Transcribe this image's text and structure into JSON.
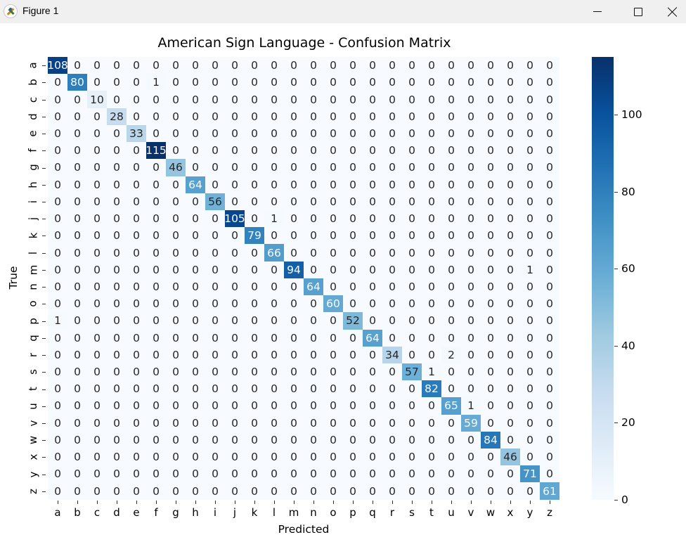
{
  "window": {
    "title": "Figure 1",
    "controls": {
      "minimize": "minimize",
      "maximize": "maximize",
      "close": "close"
    }
  },
  "chart_data": {
    "type": "heatmap",
    "title": "American Sign Language - Confusion Matrix",
    "xlabel": "Predicted",
    "ylabel": "True",
    "x_categories": [
      "a",
      "b",
      "c",
      "d",
      "e",
      "f",
      "g",
      "h",
      "i",
      "j",
      "k",
      "l",
      "m",
      "n",
      "o",
      "p",
      "q",
      "r",
      "s",
      "t",
      "u",
      "v",
      "w",
      "x",
      "y",
      "z"
    ],
    "y_categories": [
      "a",
      "b",
      "c",
      "d",
      "e",
      "f",
      "g",
      "h",
      "i",
      "j",
      "k",
      "l",
      "m",
      "n",
      "o",
      "p",
      "q",
      "r",
      "s",
      "t",
      "u",
      "v",
      "w",
      "x",
      "y",
      "z"
    ],
    "colormap": "Blues",
    "annotated": true,
    "colorbar": {
      "min": 0,
      "max": 115,
      "ticks": [
        0,
        20,
        40,
        60,
        80,
        100
      ]
    },
    "matrix": [
      [
        108,
        0,
        0,
        0,
        0,
        0,
        0,
        0,
        0,
        0,
        0,
        0,
        0,
        0,
        0,
        0,
        0,
        0,
        0,
        0,
        0,
        0,
        0,
        0,
        0,
        0
      ],
      [
        0,
        80,
        0,
        0,
        0,
        1,
        0,
        0,
        0,
        0,
        0,
        0,
        0,
        0,
        0,
        0,
        0,
        0,
        0,
        0,
        0,
        0,
        0,
        0,
        0,
        0
      ],
      [
        0,
        0,
        10,
        0,
        0,
        0,
        0,
        0,
        0,
        0,
        0,
        0,
        0,
        0,
        0,
        0,
        0,
        0,
        0,
        0,
        0,
        0,
        0,
        0,
        0,
        0
      ],
      [
        0,
        0,
        0,
        28,
        0,
        0,
        0,
        0,
        0,
        0,
        0,
        0,
        0,
        0,
        0,
        0,
        0,
        0,
        0,
        0,
        0,
        0,
        0,
        0,
        0,
        0
      ],
      [
        0,
        0,
        0,
        0,
        33,
        0,
        0,
        0,
        0,
        0,
        0,
        0,
        0,
        0,
        0,
        0,
        0,
        0,
        0,
        0,
        0,
        0,
        0,
        0,
        0,
        0
      ],
      [
        0,
        0,
        0,
        0,
        0,
        115,
        0,
        0,
        0,
        0,
        0,
        0,
        0,
        0,
        0,
        0,
        0,
        0,
        0,
        0,
        0,
        0,
        0,
        0,
        0,
        0
      ],
      [
        0,
        0,
        0,
        0,
        0,
        0,
        46,
        0,
        0,
        0,
        0,
        0,
        0,
        0,
        0,
        0,
        0,
        0,
        0,
        0,
        0,
        0,
        0,
        0,
        0,
        0
      ],
      [
        0,
        0,
        0,
        0,
        0,
        0,
        0,
        64,
        0,
        0,
        0,
        0,
        0,
        0,
        0,
        0,
        0,
        0,
        0,
        0,
        0,
        0,
        0,
        0,
        0,
        0
      ],
      [
        0,
        0,
        0,
        0,
        0,
        0,
        0,
        0,
        56,
        0,
        0,
        0,
        0,
        0,
        0,
        0,
        0,
        0,
        0,
        0,
        0,
        0,
        0,
        0,
        0,
        0
      ],
      [
        0,
        0,
        0,
        0,
        0,
        0,
        0,
        0,
        0,
        105,
        0,
        1,
        0,
        0,
        0,
        0,
        0,
        0,
        0,
        0,
        0,
        0,
        0,
        0,
        0,
        0
      ],
      [
        0,
        0,
        0,
        0,
        0,
        0,
        0,
        0,
        0,
        0,
        79,
        0,
        0,
        0,
        0,
        0,
        0,
        0,
        0,
        0,
        0,
        0,
        0,
        0,
        0,
        0
      ],
      [
        0,
        0,
        0,
        0,
        0,
        0,
        0,
        0,
        0,
        0,
        0,
        66,
        0,
        0,
        0,
        0,
        0,
        0,
        0,
        0,
        0,
        0,
        0,
        0,
        0,
        0
      ],
      [
        0,
        0,
        0,
        0,
        0,
        0,
        0,
        0,
        0,
        0,
        0,
        0,
        94,
        0,
        0,
        0,
        0,
        0,
        0,
        0,
        0,
        0,
        0,
        0,
        1,
        0
      ],
      [
        0,
        0,
        0,
        0,
        0,
        0,
        0,
        0,
        0,
        0,
        0,
        0,
        0,
        64,
        0,
        0,
        0,
        0,
        0,
        0,
        0,
        0,
        0,
        0,
        0,
        0
      ],
      [
        0,
        0,
        0,
        0,
        0,
        0,
        0,
        0,
        0,
        0,
        0,
        0,
        0,
        0,
        60,
        0,
        0,
        0,
        0,
        0,
        0,
        0,
        0,
        0,
        0,
        0
      ],
      [
        1,
        0,
        0,
        0,
        0,
        0,
        0,
        0,
        0,
        0,
        0,
        0,
        0,
        0,
        0,
        52,
        0,
        0,
        0,
        0,
        0,
        0,
        0,
        0,
        0,
        0
      ],
      [
        0,
        0,
        0,
        0,
        0,
        0,
        0,
        0,
        0,
        0,
        0,
        0,
        0,
        0,
        0,
        0,
        64,
        0,
        0,
        0,
        0,
        0,
        0,
        0,
        0,
        0
      ],
      [
        0,
        0,
        0,
        0,
        0,
        0,
        0,
        0,
        0,
        0,
        0,
        0,
        0,
        0,
        0,
        0,
        0,
        34,
        0,
        0,
        2,
        0,
        0,
        0,
        0,
        0
      ],
      [
        0,
        0,
        0,
        0,
        0,
        0,
        0,
        0,
        0,
        0,
        0,
        0,
        0,
        0,
        0,
        0,
        0,
        0,
        57,
        1,
        0,
        0,
        0,
        0,
        0,
        0
      ],
      [
        0,
        0,
        0,
        0,
        0,
        0,
        0,
        0,
        0,
        0,
        0,
        0,
        0,
        0,
        0,
        0,
        0,
        0,
        0,
        82,
        0,
        0,
        0,
        0,
        0,
        0
      ],
      [
        0,
        0,
        0,
        0,
        0,
        0,
        0,
        0,
        0,
        0,
        0,
        0,
        0,
        0,
        0,
        0,
        0,
        0,
        0,
        0,
        65,
        1,
        0,
        0,
        0,
        0
      ],
      [
        0,
        0,
        0,
        0,
        0,
        0,
        0,
        0,
        0,
        0,
        0,
        0,
        0,
        0,
        0,
        0,
        0,
        0,
        0,
        0,
        0,
        59,
        0,
        0,
        0,
        0
      ],
      [
        0,
        0,
        0,
        0,
        0,
        0,
        0,
        0,
        0,
        0,
        0,
        0,
        0,
        0,
        0,
        0,
        0,
        0,
        0,
        0,
        0,
        0,
        84,
        0,
        0,
        0
      ],
      [
        0,
        0,
        0,
        0,
        0,
        0,
        0,
        0,
        0,
        0,
        0,
        0,
        0,
        0,
        0,
        0,
        0,
        0,
        0,
        0,
        0,
        0,
        0,
        46,
        0,
        0
      ],
      [
        0,
        0,
        0,
        0,
        0,
        0,
        0,
        0,
        0,
        0,
        0,
        0,
        0,
        0,
        0,
        0,
        0,
        0,
        0,
        0,
        0,
        0,
        0,
        0,
        71,
        0
      ],
      [
        0,
        0,
        0,
        0,
        0,
        0,
        0,
        0,
        0,
        0,
        0,
        0,
        0,
        0,
        0,
        0,
        0,
        0,
        0,
        0,
        0,
        0,
        0,
        0,
        0,
        61
      ]
    ]
  }
}
